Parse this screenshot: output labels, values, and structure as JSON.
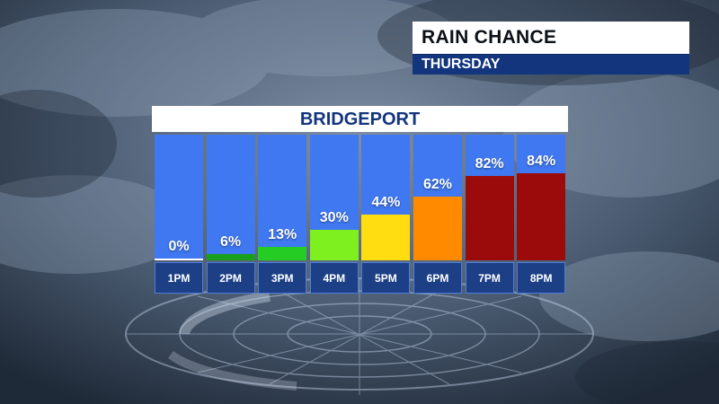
{
  "graphic": {
    "title": "RAIN CHANCE",
    "day": "THURSDAY",
    "location": "BRIDGEPORT"
  },
  "colors": {
    "column_bg": "#3f78f0",
    "label_bg": "#1c3f86",
    "header_text": "#12357e"
  },
  "chart_data": {
    "type": "bar",
    "title": "RAIN CHANCE",
    "subtitle": "THURSDAY",
    "location": "BRIDGEPORT",
    "categories": [
      "1PM",
      "2PM",
      "3PM",
      "4PM",
      "5PM",
      "6PM",
      "7PM",
      "8PM"
    ],
    "values": [
      0,
      6,
      13,
      30,
      44,
      62,
      82,
      84
    ],
    "value_labels": [
      "0%",
      "6%",
      "13%",
      "30%",
      "44%",
      "62%",
      "82%",
      "84%"
    ],
    "bar_colors": [
      "#ffffff",
      "#1aa01a",
      "#24cc24",
      "#7ef020",
      "#ffdd10",
      "#ff8a00",
      "#9c0b0b",
      "#9c0b0b"
    ],
    "ylim": [
      0,
      100
    ],
    "unit": "%",
    "grid": false,
    "legend": "none"
  }
}
